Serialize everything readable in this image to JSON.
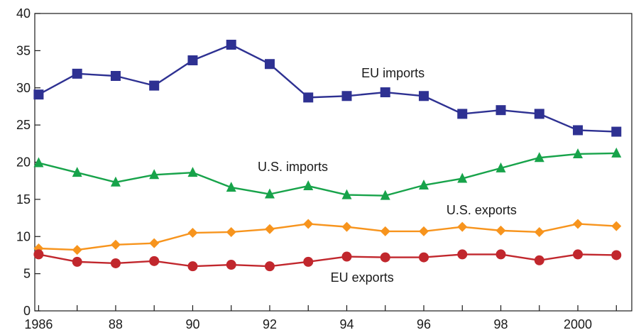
{
  "chart_data": {
    "type": "line",
    "title": "",
    "xlabel": "",
    "ylabel": "",
    "x": [
      1986,
      1987,
      1988,
      1989,
      1990,
      1991,
      1992,
      1993,
      1994,
      1995,
      1996,
      1997,
      1998,
      1999,
      2000,
      2001
    ],
    "xlim": [
      1985.9,
      2001.4
    ],
    "ylim": [
      0,
      40
    ],
    "x_ticks": [
      1986,
      1987,
      1988,
      1989,
      1990,
      1991,
      1992,
      1993,
      1994,
      1995,
      1996,
      1997,
      1998,
      1999,
      2000,
      2001
    ],
    "x_tick_labels": [
      "1986",
      "",
      "88",
      "",
      "90",
      "",
      "92",
      "",
      "94",
      "",
      "96",
      "",
      "98",
      "",
      "2000",
      ""
    ],
    "y_ticks": [
      0,
      5,
      10,
      15,
      20,
      25,
      30,
      35,
      40
    ],
    "y_tick_labels": [
      "0",
      "5",
      "10",
      "15",
      "20",
      "25",
      "30",
      "35",
      "40"
    ],
    "grid": false,
    "legend": "none (series labeled inline)",
    "series": [
      {
        "name": "EU imports",
        "color": "#2e3192",
        "marker": "square",
        "values": [
          29.1,
          31.9,
          31.6,
          30.3,
          33.7,
          35.8,
          33.2,
          28.7,
          28.9,
          29.4,
          28.9,
          26.5,
          27.0,
          26.5,
          24.3,
          24.1
        ]
      },
      {
        "name": "U.S. imports",
        "color": "#17a34a",
        "marker": "triangle",
        "values": [
          19.9,
          18.6,
          17.3,
          18.3,
          18.6,
          16.6,
          15.7,
          16.8,
          15.6,
          15.5,
          16.9,
          17.8,
          19.2,
          20.6,
          21.1,
          21.2
        ]
      },
      {
        "name": "U.S. exports",
        "color": "#f7941d",
        "marker": "diamond",
        "values": [
          8.4,
          8.2,
          8.9,
          9.1,
          10.5,
          10.6,
          11.0,
          11.7,
          11.3,
          10.7,
          10.7,
          11.3,
          10.8,
          10.6,
          11.7,
          11.4
        ]
      },
      {
        "name": "EU exports",
        "color": "#c1272d",
        "marker": "circle",
        "values": [
          7.6,
          6.6,
          6.4,
          6.7,
          6.0,
          6.2,
          6.0,
          6.6,
          7.3,
          7.2,
          7.2,
          7.6,
          7.6,
          6.8,
          7.6,
          7.5
        ]
      }
    ],
    "annotations": [
      {
        "text": "EU imports",
        "x": 1995.2,
        "y": 31.4
      },
      {
        "text": "U.S. imports",
        "x": 1992.6,
        "y": 18.8
      },
      {
        "text": "U.S. exports",
        "x": 1997.5,
        "y": 13.0
      },
      {
        "text": "EU exports",
        "x": 1994.4,
        "y": 3.9
      }
    ]
  }
}
